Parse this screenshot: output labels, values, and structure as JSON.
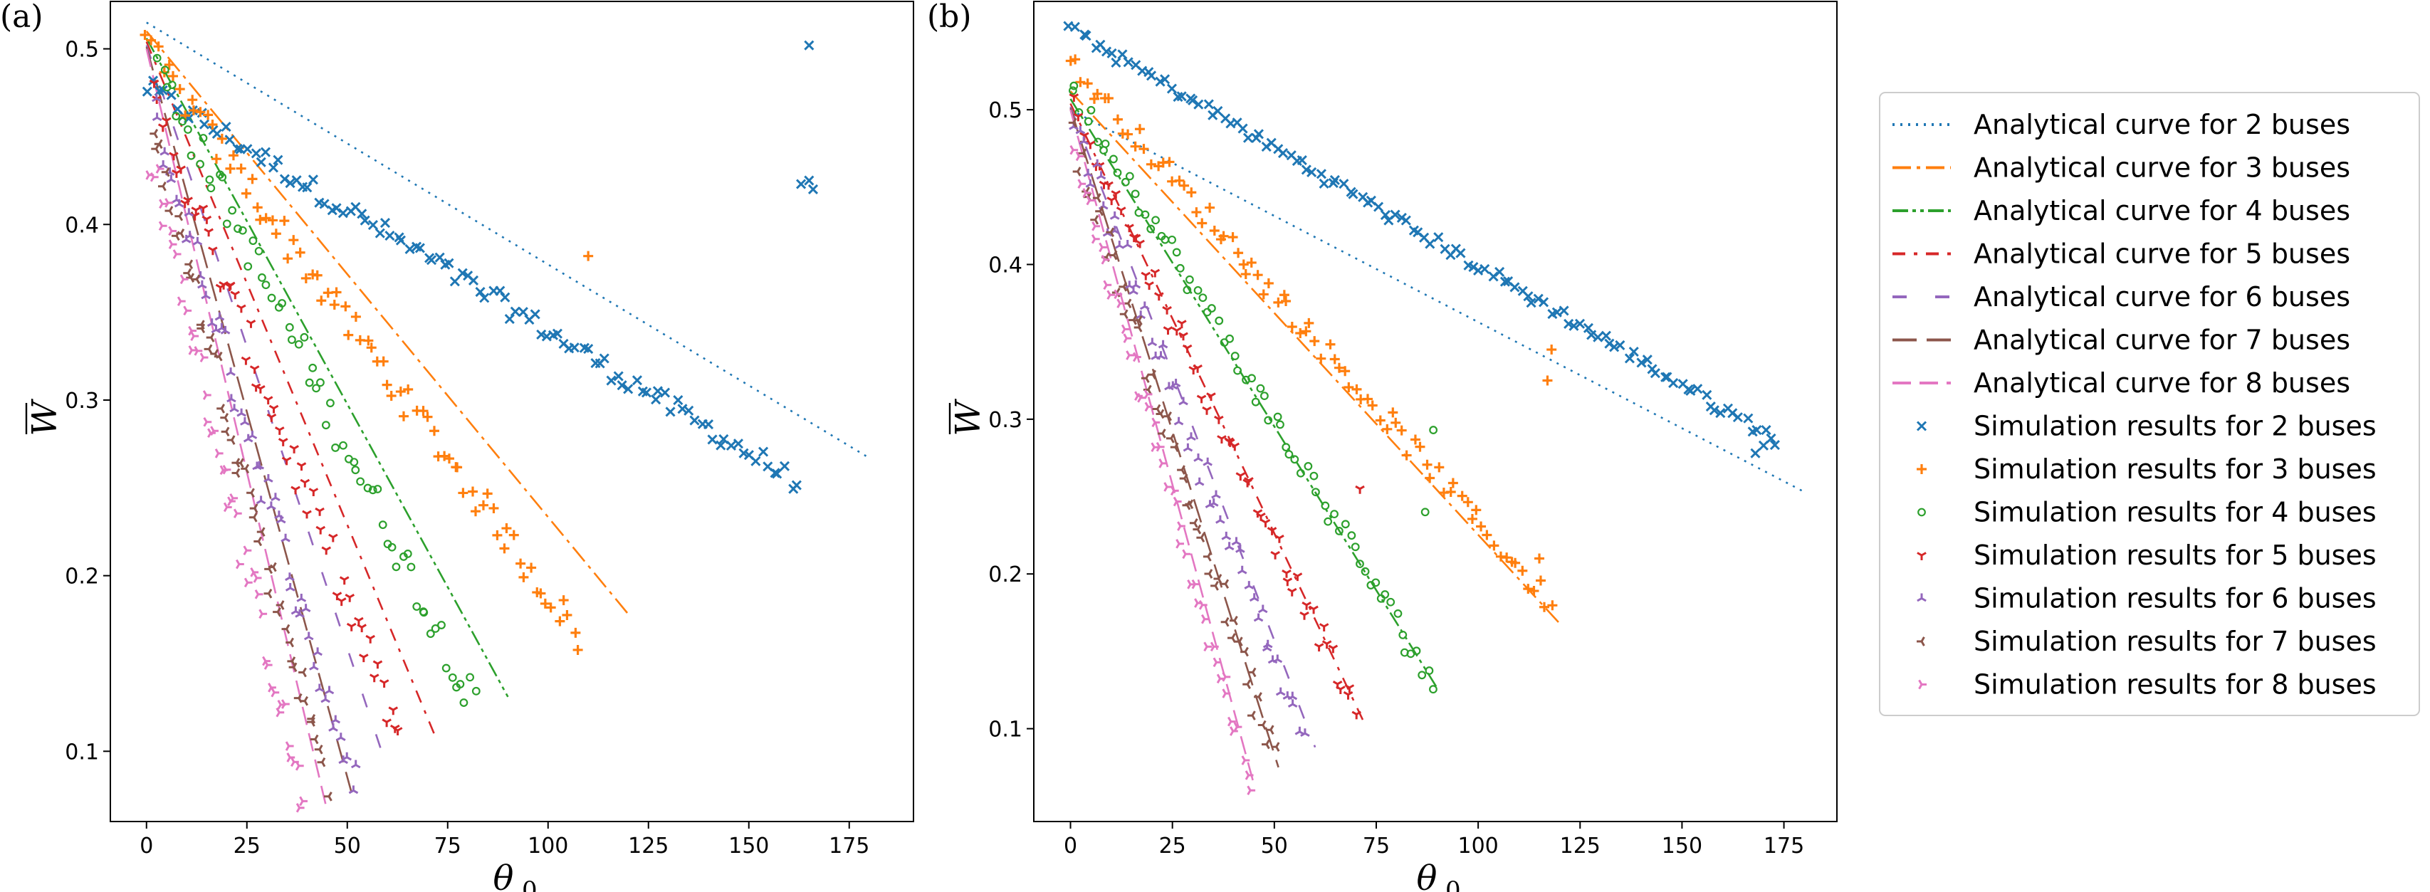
{
  "chart_data": [
    {
      "type": "scatter",
      "panel_label": "(a)",
      "xlabel": "θ",
      "xlabel_sub": "0",
      "ylabel": "W",
      "xlim": [
        -9,
        191
      ],
      "ylim": [
        0.06,
        0.527
      ],
      "xticks": [
        0,
        25,
        50,
        75,
        100,
        125,
        150,
        175
      ],
      "yticks": [
        0.1,
        0.2,
        0.3,
        0.4,
        0.5
      ],
      "xtick_labels": [
        "0",
        "25",
        "50",
        "75",
        "100",
        "125",
        "150",
        "175"
      ],
      "ytick_labels": [
        "0.1",
        "0.2",
        "0.3",
        "0.4",
        "0.5"
      ],
      "analytical": [
        {
          "buses": 2,
          "x": [
            0,
            180
          ],
          "y": [
            0.515,
            0.267
          ]
        },
        {
          "buses": 3,
          "x": [
            0,
            120
          ],
          "y": [
            0.51,
            0.178
          ]
        },
        {
          "buses": 4,
          "x": [
            0,
            90
          ],
          "y": [
            0.506,
            0.131
          ]
        },
        {
          "buses": 5,
          "x": [
            0,
            72
          ],
          "y": [
            0.504,
            0.108
          ]
        },
        {
          "buses": 6,
          "x": [
            0,
            60
          ],
          "y": [
            0.502,
            0.09
          ]
        },
        {
          "buses": 7,
          "x": [
            0,
            51
          ],
          "y": [
            0.501,
            0.077
          ]
        },
        {
          "buses": 8,
          "x": [
            0,
            45
          ],
          "y": [
            0.5,
            0.066
          ]
        }
      ],
      "simulation": [
        {
          "buses": 2,
          "x_range": [
            0,
            162
          ],
          "y_start": 0.478,
          "y_end": 0.253,
          "n": 110,
          "jitter": 0.006,
          "extra": [
            {
              "x": 165,
              "y": 0.502
            },
            {
              "x": 163,
              "y": 0.423
            },
            {
              "x": 165,
              "y": 0.425
            },
            {
              "x": 166,
              "y": 0.42
            }
          ]
        },
        {
          "buses": 3,
          "x_range": [
            0,
            108
          ],
          "y_start": 0.5,
          "y_end": 0.165,
          "n": 80,
          "jitter": 0.01,
          "extra": [
            {
              "x": 110,
              "y": 0.382
            }
          ]
        },
        {
          "buses": 4,
          "x_range": [
            3,
            82
          ],
          "y_start": 0.49,
          "y_end": 0.125,
          "n": 65,
          "jitter": 0.012,
          "extra": []
        },
        {
          "buses": 5,
          "x_range": [
            2,
            63
          ],
          "y_start": 0.47,
          "y_end": 0.107,
          "n": 58,
          "jitter": 0.014,
          "extra": []
        },
        {
          "buses": 6,
          "x_range": [
            2,
            52
          ],
          "y_start": 0.46,
          "y_end": 0.08,
          "n": 55,
          "jitter": 0.014,
          "extra": []
        },
        {
          "buses": 7,
          "x_range": [
            2,
            45
          ],
          "y_start": 0.45,
          "y_end": 0.082,
          "n": 50,
          "jitter": 0.013,
          "extra": []
        },
        {
          "buses": 8,
          "x_range": [
            1,
            39
          ],
          "y_start": 0.44,
          "y_end": 0.068,
          "n": 48,
          "jitter": 0.013,
          "extra": []
        }
      ]
    },
    {
      "type": "scatter",
      "panel_label": "(b)",
      "xlabel": "θ",
      "xlabel_sub": "0",
      "ylabel": "W",
      "xlim": [
        -9,
        188
      ],
      "ylim": [
        0.04,
        0.57
      ],
      "xticks": [
        0,
        25,
        50,
        75,
        100,
        125,
        150,
        175
      ],
      "yticks": [
        0.1,
        0.2,
        0.3,
        0.4,
        0.5
      ],
      "xtick_labels": [
        "0",
        "25",
        "50",
        "75",
        "100",
        "125",
        "150",
        "175"
      ],
      "ytick_labels": [
        "0.1",
        "0.2",
        "0.3",
        "0.4",
        "0.5"
      ],
      "analytical": [
        {
          "buses": 2,
          "x": [
            0,
            180
          ],
          "y": [
            0.5,
            0.253
          ]
        },
        {
          "buses": 3,
          "x": [
            0,
            120
          ],
          "y": [
            0.512,
            0.168
          ]
        },
        {
          "buses": 4,
          "x": [
            0,
            90
          ],
          "y": [
            0.507,
            0.126
          ]
        },
        {
          "buses": 5,
          "x": [
            0,
            72
          ],
          "y": [
            0.504,
            0.104
          ]
        },
        {
          "buses": 6,
          "x": [
            0,
            60
          ],
          "y": [
            0.502,
            0.088
          ]
        },
        {
          "buses": 7,
          "x": [
            0,
            51
          ],
          "y": [
            0.501,
            0.075
          ]
        },
        {
          "buses": 8,
          "x": [
            0,
            45
          ],
          "y": [
            0.5,
            0.064
          ]
        }
      ],
      "simulation": [
        {
          "buses": 2,
          "x_range": [
            0,
            173
          ],
          "y_start": 0.552,
          "y_end": 0.287,
          "n": 120,
          "jitter": 0.004,
          "extra": [
            {
              "x": 168,
              "y": 0.278
            },
            {
              "x": 170,
              "y": 0.283
            }
          ]
        },
        {
          "buses": 3,
          "x_range": [
            0,
            118
          ],
          "y_start": 0.53,
          "y_end": 0.18,
          "n": 85,
          "jitter": 0.008,
          "extra": [
            {
              "x": 117,
              "y": 0.325
            },
            {
              "x": 118,
              "y": 0.345
            },
            {
              "x": 115,
              "y": 0.21
            }
          ]
        },
        {
          "buses": 4,
          "x_range": [
            0,
            89
          ],
          "y_start": 0.515,
          "y_end": 0.13,
          "n": 70,
          "jitter": 0.009,
          "extra": [
            {
              "x": 89,
              "y": 0.293
            },
            {
              "x": 87,
              "y": 0.24
            }
          ]
        },
        {
          "buses": 5,
          "x_range": [
            1,
            70
          ],
          "y_start": 0.5,
          "y_end": 0.11,
          "n": 60,
          "jitter": 0.01,
          "extra": [
            {
              "x": 71,
              "y": 0.255
            }
          ]
        },
        {
          "buses": 6,
          "x_range": [
            1,
            57
          ],
          "y_start": 0.49,
          "y_end": 0.096,
          "n": 55,
          "jitter": 0.012,
          "extra": []
        },
        {
          "buses": 7,
          "x_range": [
            1,
            50
          ],
          "y_start": 0.48,
          "y_end": 0.08,
          "n": 52,
          "jitter": 0.013,
          "extra": []
        },
        {
          "buses": 8,
          "x_range": [
            1,
            44
          ],
          "y_start": 0.47,
          "y_end": 0.068,
          "n": 48,
          "jitter": 0.012,
          "extra": []
        }
      ]
    }
  ],
  "series_colors": [
    "#1f77b4",
    "#ff7f0e",
    "#2ca02c",
    "#d62728",
    "#9467bd",
    "#8c564b",
    "#e377c2"
  ],
  "legend": {
    "analytical": [
      "Analytical curve for 2 buses",
      "Analytical curve for 3 buses",
      "Analytical curve for 4 buses",
      "Analytical curve for 5 buses",
      "Analytical curve for 6 buses",
      "Analytical curve for 7 buses",
      "Analytical curve for 8 buses"
    ],
    "simulation": [
      "Simulation results for 2 buses",
      "Simulation results for 3 buses",
      "Simulation results for 4 buses",
      "Simulation results for 5 buses",
      "Simulation results for 6 buses",
      "Simulation results for 7 buses",
      "Simulation results for 8 buses"
    ]
  }
}
